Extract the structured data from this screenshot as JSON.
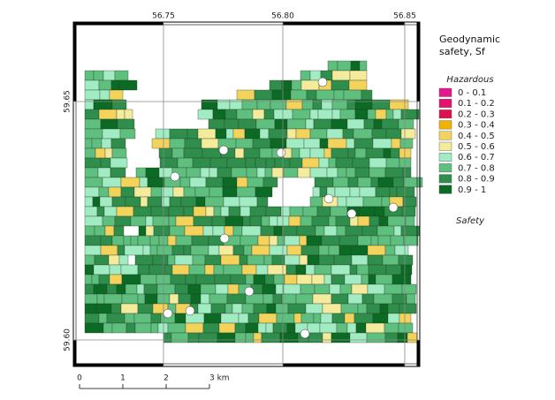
{
  "map": {
    "coordinate_labels": {
      "top": [
        "56.75",
        "56.80",
        "56.85"
      ],
      "left": [
        "59.65",
        "59.60"
      ]
    },
    "legend": {
      "title": "Geodynamic safety, Sf",
      "top_label": "Hazardous",
      "bottom_label": "Safety",
      "classes": [
        {
          "label": "0 - 0.1",
          "color": "#e8168c"
        },
        {
          "label": "0.1 - 0.2",
          "color": "#e6126e"
        },
        {
          "label": "0.2 - 0.3",
          "color": "#e0104f"
        },
        {
          "label": "0.3 - 0.4",
          "color": "#f0b400"
        },
        {
          "label": "0.4 - 0.5",
          "color": "#f3d35c"
        },
        {
          "label": "0.5 - 0.6",
          "color": "#f4ec9c"
        },
        {
          "label": "0.6 - 0.7",
          "color": "#a2ecc4"
        },
        {
          "label": "0.7 - 0.8",
          "color": "#5fbf7f"
        },
        {
          "label": "0.8 - 0.9",
          "color": "#2f8e4b"
        },
        {
          "label": "0.9 - 1",
          "color": "#0b6a23"
        }
      ]
    },
    "scale_bar": {
      "labels": [
        "0",
        "1",
        "2",
        "3 km"
      ]
    }
  }
}
